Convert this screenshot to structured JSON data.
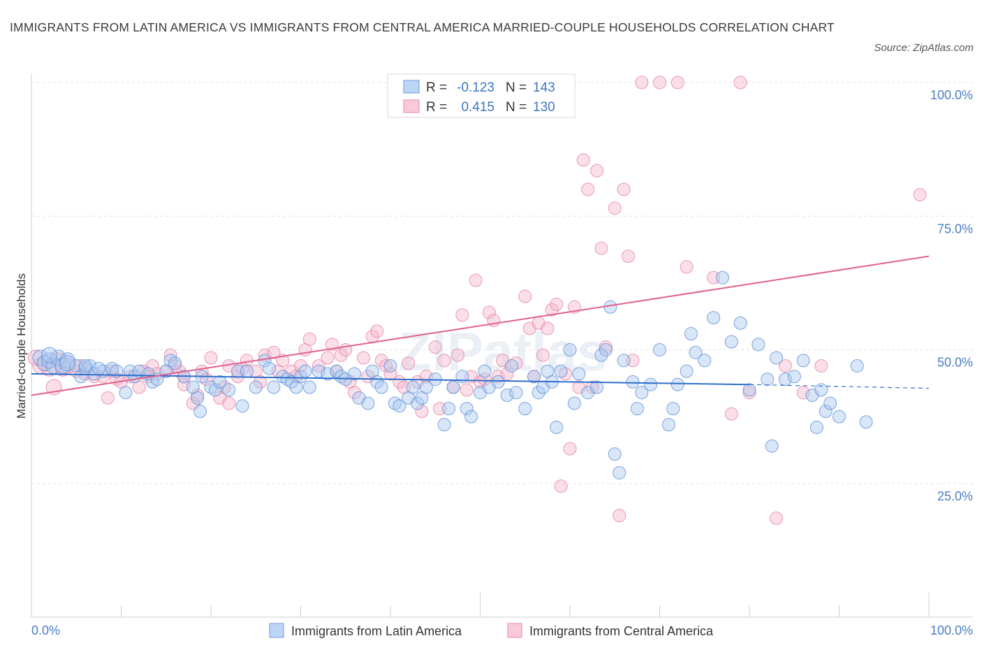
{
  "chart_data": {
    "type": "scatter",
    "title": "IMMIGRANTS FROM LATIN AMERICA VS IMMIGRANTS FROM CENTRAL AMERICA MARRIED-COUPLE HOUSEHOLDS CORRELATION CHART",
    "source": "Source: ZipAtlas.com",
    "xlabel": "",
    "ylabel": "Married-couple Households",
    "xlim": [
      0,
      100
    ],
    "ylim": [
      0,
      100
    ],
    "x_tick_labels": [
      "0.0%",
      "100.0%"
    ],
    "y_ticks": [
      {
        "value": 25,
        "label": "25.0%"
      },
      {
        "value": 50,
        "label": "50.0%"
      },
      {
        "value": 75,
        "label": "75.0%"
      },
      {
        "value": 100,
        "label": "100.0%"
      }
    ],
    "watermark": "ZIPatlas",
    "legend": {
      "r_label": "R =",
      "n_label": "N =",
      "entries": [
        {
          "r": "-0.123",
          "n": "143"
        },
        {
          "r": "0.415",
          "n": "130"
        }
      ]
    },
    "series": [
      {
        "name": "Immigrants from Latin America",
        "fill": "#a9c8f0",
        "stroke": "#5b8fd6",
        "line_color": "#2f6fcc",
        "trend": {
          "x0": 0,
          "y0": 45.5,
          "x1": 80,
          "y1": 43.5,
          "x_dash_end": 100,
          "y_dash_end": 42.8
        },
        "points": [
          [
            1,
            48.5
          ],
          [
            1.5,
            47.5
          ],
          [
            2,
            48
          ],
          [
            2.5,
            47
          ],
          [
            3,
            48.5
          ],
          [
            3.5,
            47
          ],
          [
            4,
            48
          ],
          [
            5,
            47
          ],
          [
            5.5,
            45
          ],
          [
            6,
            46.5
          ],
          [
            6.5,
            47
          ],
          [
            7,
            45.5
          ],
          [
            8,
            46
          ],
          [
            9,
            46.5
          ],
          [
            9.5,
            46
          ],
          [
            10.5,
            42
          ],
          [
            11,
            46
          ],
          [
            11.5,
            45
          ],
          [
            12,
            46
          ],
          [
            13,
            45.5
          ],
          [
            13.5,
            44
          ],
          [
            14,
            44.5
          ],
          [
            15,
            46
          ],
          [
            15.5,
            48
          ],
          [
            16,
            47.5
          ],
          [
            17,
            45
          ],
          [
            18,
            43
          ],
          [
            18.5,
            41
          ],
          [
            18.8,
            38.5
          ],
          [
            19,
            45
          ],
          [
            20,
            43
          ],
          [
            20.5,
            42.5
          ],
          [
            21,
            44
          ],
          [
            22,
            42.5
          ],
          [
            23,
            46
          ],
          [
            23.5,
            39.5
          ],
          [
            24,
            46
          ],
          [
            25,
            43
          ],
          [
            26,
            48
          ],
          [
            26.5,
            46.5
          ],
          [
            27,
            43
          ],
          [
            28,
            45
          ],
          [
            28.5,
            44.5
          ],
          [
            29,
            44
          ],
          [
            29.5,
            43
          ],
          [
            30,
            45
          ],
          [
            30.5,
            46
          ],
          [
            31,
            43
          ],
          [
            32,
            46
          ],
          [
            33,
            45.5
          ],
          [
            34,
            46
          ],
          [
            34.5,
            45
          ],
          [
            35,
            44.5
          ],
          [
            36,
            45.5
          ],
          [
            36.5,
            41
          ],
          [
            37.5,
            40
          ],
          [
            38,
            46
          ],
          [
            38.5,
            44
          ],
          [
            39,
            43
          ],
          [
            40,
            47
          ],
          [
            40.5,
            40
          ],
          [
            41,
            39.5
          ],
          [
            42,
            41
          ],
          [
            42.5,
            43
          ],
          [
            43,
            40
          ],
          [
            43.5,
            41
          ],
          [
            44,
            43
          ],
          [
            45,
            44.5
          ],
          [
            46,
            36
          ],
          [
            46.5,
            39
          ],
          [
            47,
            43
          ],
          [
            48,
            45
          ],
          [
            48.5,
            39
          ],
          [
            49,
            37.5
          ],
          [
            50,
            42
          ],
          [
            50.5,
            46
          ],
          [
            51,
            43
          ],
          [
            52,
            44
          ],
          [
            53,
            41.5
          ],
          [
            53.5,
            47
          ],
          [
            54,
            42
          ],
          [
            55,
            39
          ],
          [
            56,
            45
          ],
          [
            56.5,
            42
          ],
          [
            57,
            43
          ],
          [
            57.5,
            46
          ],
          [
            58,
            44
          ],
          [
            58.5,
            35.5
          ],
          [
            59,
            46
          ],
          [
            60,
            50
          ],
          [
            60.5,
            40
          ],
          [
            61,
            45.5
          ],
          [
            62,
            42
          ],
          [
            63,
            43
          ],
          [
            63.5,
            49
          ],
          [
            64,
            50
          ],
          [
            64.5,
            58
          ],
          [
            65,
            30.5
          ],
          [
            65.5,
            27
          ],
          [
            66,
            48
          ],
          [
            67,
            44
          ],
          [
            67.5,
            39
          ],
          [
            68,
            42
          ],
          [
            69,
            43.5
          ],
          [
            70,
            50
          ],
          [
            71,
            36
          ],
          [
            71.5,
            39
          ],
          [
            72,
            43.5
          ],
          [
            73,
            46
          ],
          [
            73.5,
            53
          ],
          [
            74,
            49.5
          ],
          [
            75,
            48
          ],
          [
            76,
            56
          ],
          [
            77,
            63.5
          ],
          [
            78,
            51.5
          ],
          [
            79,
            55
          ],
          [
            80,
            42.5
          ],
          [
            81,
            51
          ],
          [
            82,
            44.5
          ],
          [
            82.5,
            32
          ],
          [
            83,
            48.5
          ],
          [
            84,
            44.5
          ],
          [
            85,
            45
          ],
          [
            86,
            48
          ],
          [
            87,
            41.5
          ],
          [
            87.5,
            35.5
          ],
          [
            88,
            42.5
          ],
          [
            88.5,
            38.5
          ],
          [
            89,
            40
          ],
          [
            90,
            37.5
          ],
          [
            92,
            47
          ],
          [
            93,
            36.5
          ],
          [
            4,
            47.5
          ],
          [
            2,
            49
          ],
          [
            6,
            47
          ],
          [
            7.5,
            46.5
          ]
        ]
      },
      {
        "name": "Immigrants from Central America",
        "fill": "#f6b9cb",
        "stroke": "#e482a3",
        "line_color": "#e0608b",
        "trend": {
          "x0": 0,
          "y0": 41.5,
          "x1": 100,
          "y1": 67.5
        },
        "points": [
          [
            0.5,
            48.5
          ],
          [
            1,
            47
          ],
          [
            1.5,
            47.5
          ],
          [
            2,
            46.5
          ],
          [
            2.5,
            43
          ],
          [
            3,
            48
          ],
          [
            3.5,
            46.5
          ],
          [
            4,
            47
          ],
          [
            5,
            46
          ],
          [
            5.5,
            47
          ],
          [
            6,
            45.5
          ],
          [
            7,
            45
          ],
          [
            8,
            45
          ],
          [
            8.5,
            41
          ],
          [
            9,
            46
          ],
          [
            9.5,
            44.5
          ],
          [
            10,
            44
          ],
          [
            11,
            45
          ],
          [
            12,
            43
          ],
          [
            12.5,
            46
          ],
          [
            13,
            45
          ],
          [
            13.5,
            47
          ],
          [
            14,
            45.5
          ],
          [
            15,
            46
          ],
          [
            15.5,
            49
          ],
          [
            16,
            47
          ],
          [
            16.5,
            46
          ],
          [
            17,
            45
          ],
          [
            18,
            40
          ],
          [
            18.5,
            41.5
          ],
          [
            19,
            46
          ],
          [
            19.5,
            44.5
          ],
          [
            20,
            48.5
          ],
          [
            21,
            41
          ],
          [
            21.5,
            43
          ],
          [
            22,
            47
          ],
          [
            23,
            45
          ],
          [
            23.5,
            46.5
          ],
          [
            24,
            48
          ],
          [
            25,
            46
          ],
          [
            25.5,
            44
          ],
          [
            26,
            49
          ],
          [
            27,
            49.5
          ],
          [
            27.5,
            46
          ],
          [
            28,
            48
          ],
          [
            29,
            46
          ],
          [
            29.5,
            45
          ],
          [
            30,
            47
          ],
          [
            30.5,
            50
          ],
          [
            31,
            52
          ],
          [
            32,
            47
          ],
          [
            33,
            48.5
          ],
          [
            33.5,
            51
          ],
          [
            34,
            46
          ],
          [
            34.5,
            49
          ],
          [
            35,
            50
          ],
          [
            35.5,
            44
          ],
          [
            36,
            42
          ],
          [
            37,
            48.5
          ],
          [
            37.5,
            45
          ],
          [
            38,
            52.5
          ],
          [
            38.5,
            53.5
          ],
          [
            39,
            48
          ],
          [
            39.5,
            47
          ],
          [
            40,
            45.5
          ],
          [
            41,
            44
          ],
          [
            41.5,
            43
          ],
          [
            42,
            47.5
          ],
          [
            43,
            44
          ],
          [
            43.5,
            38.5
          ],
          [
            44,
            45
          ],
          [
            45,
            50.5
          ],
          [
            45.5,
            39
          ],
          [
            46,
            48
          ],
          [
            47,
            43
          ],
          [
            47.5,
            49
          ],
          [
            48,
            56.5
          ],
          [
            48.5,
            42.5
          ],
          [
            49,
            45
          ],
          [
            49.5,
            63
          ],
          [
            50,
            44
          ],
          [
            50.5,
            44.5
          ],
          [
            51,
            57
          ],
          [
            51.5,
            55.5
          ],
          [
            52,
            45
          ],
          [
            52.5,
            48
          ],
          [
            53,
            45.5
          ],
          [
            54,
            47.5
          ],
          [
            55,
            60
          ],
          [
            55.5,
            54
          ],
          [
            56,
            45
          ],
          [
            56.5,
            55
          ],
          [
            57,
            49
          ],
          [
            57.5,
            54
          ],
          [
            58,
            57.5
          ],
          [
            58.5,
            58.5
          ],
          [
            59,
            24.5
          ],
          [
            59.5,
            45.5
          ],
          [
            60,
            31.5
          ],
          [
            60.5,
            58
          ],
          [
            61,
            43
          ],
          [
            61.5,
            85.5
          ],
          [
            62,
            80
          ],
          [
            62.5,
            43
          ],
          [
            63,
            83.5
          ],
          [
            63.5,
            69
          ],
          [
            64,
            50.5
          ],
          [
            65,
            76.5
          ],
          [
            65.5,
            19
          ],
          [
            66,
            80
          ],
          [
            66.5,
            67.5
          ],
          [
            67,
            48
          ],
          [
            68,
            100
          ],
          [
            70,
            100
          ],
          [
            72,
            100
          ],
          [
            73,
            65.5
          ],
          [
            76,
            63.5
          ],
          [
            78,
            38
          ],
          [
            79,
            100
          ],
          [
            80,
            42
          ],
          [
            83,
            18.5
          ],
          [
            84,
            47
          ],
          [
            86,
            42
          ],
          [
            88,
            47
          ],
          [
            99,
            79
          ],
          [
            22,
            40
          ],
          [
            17,
            43.5
          ]
        ]
      }
    ]
  }
}
